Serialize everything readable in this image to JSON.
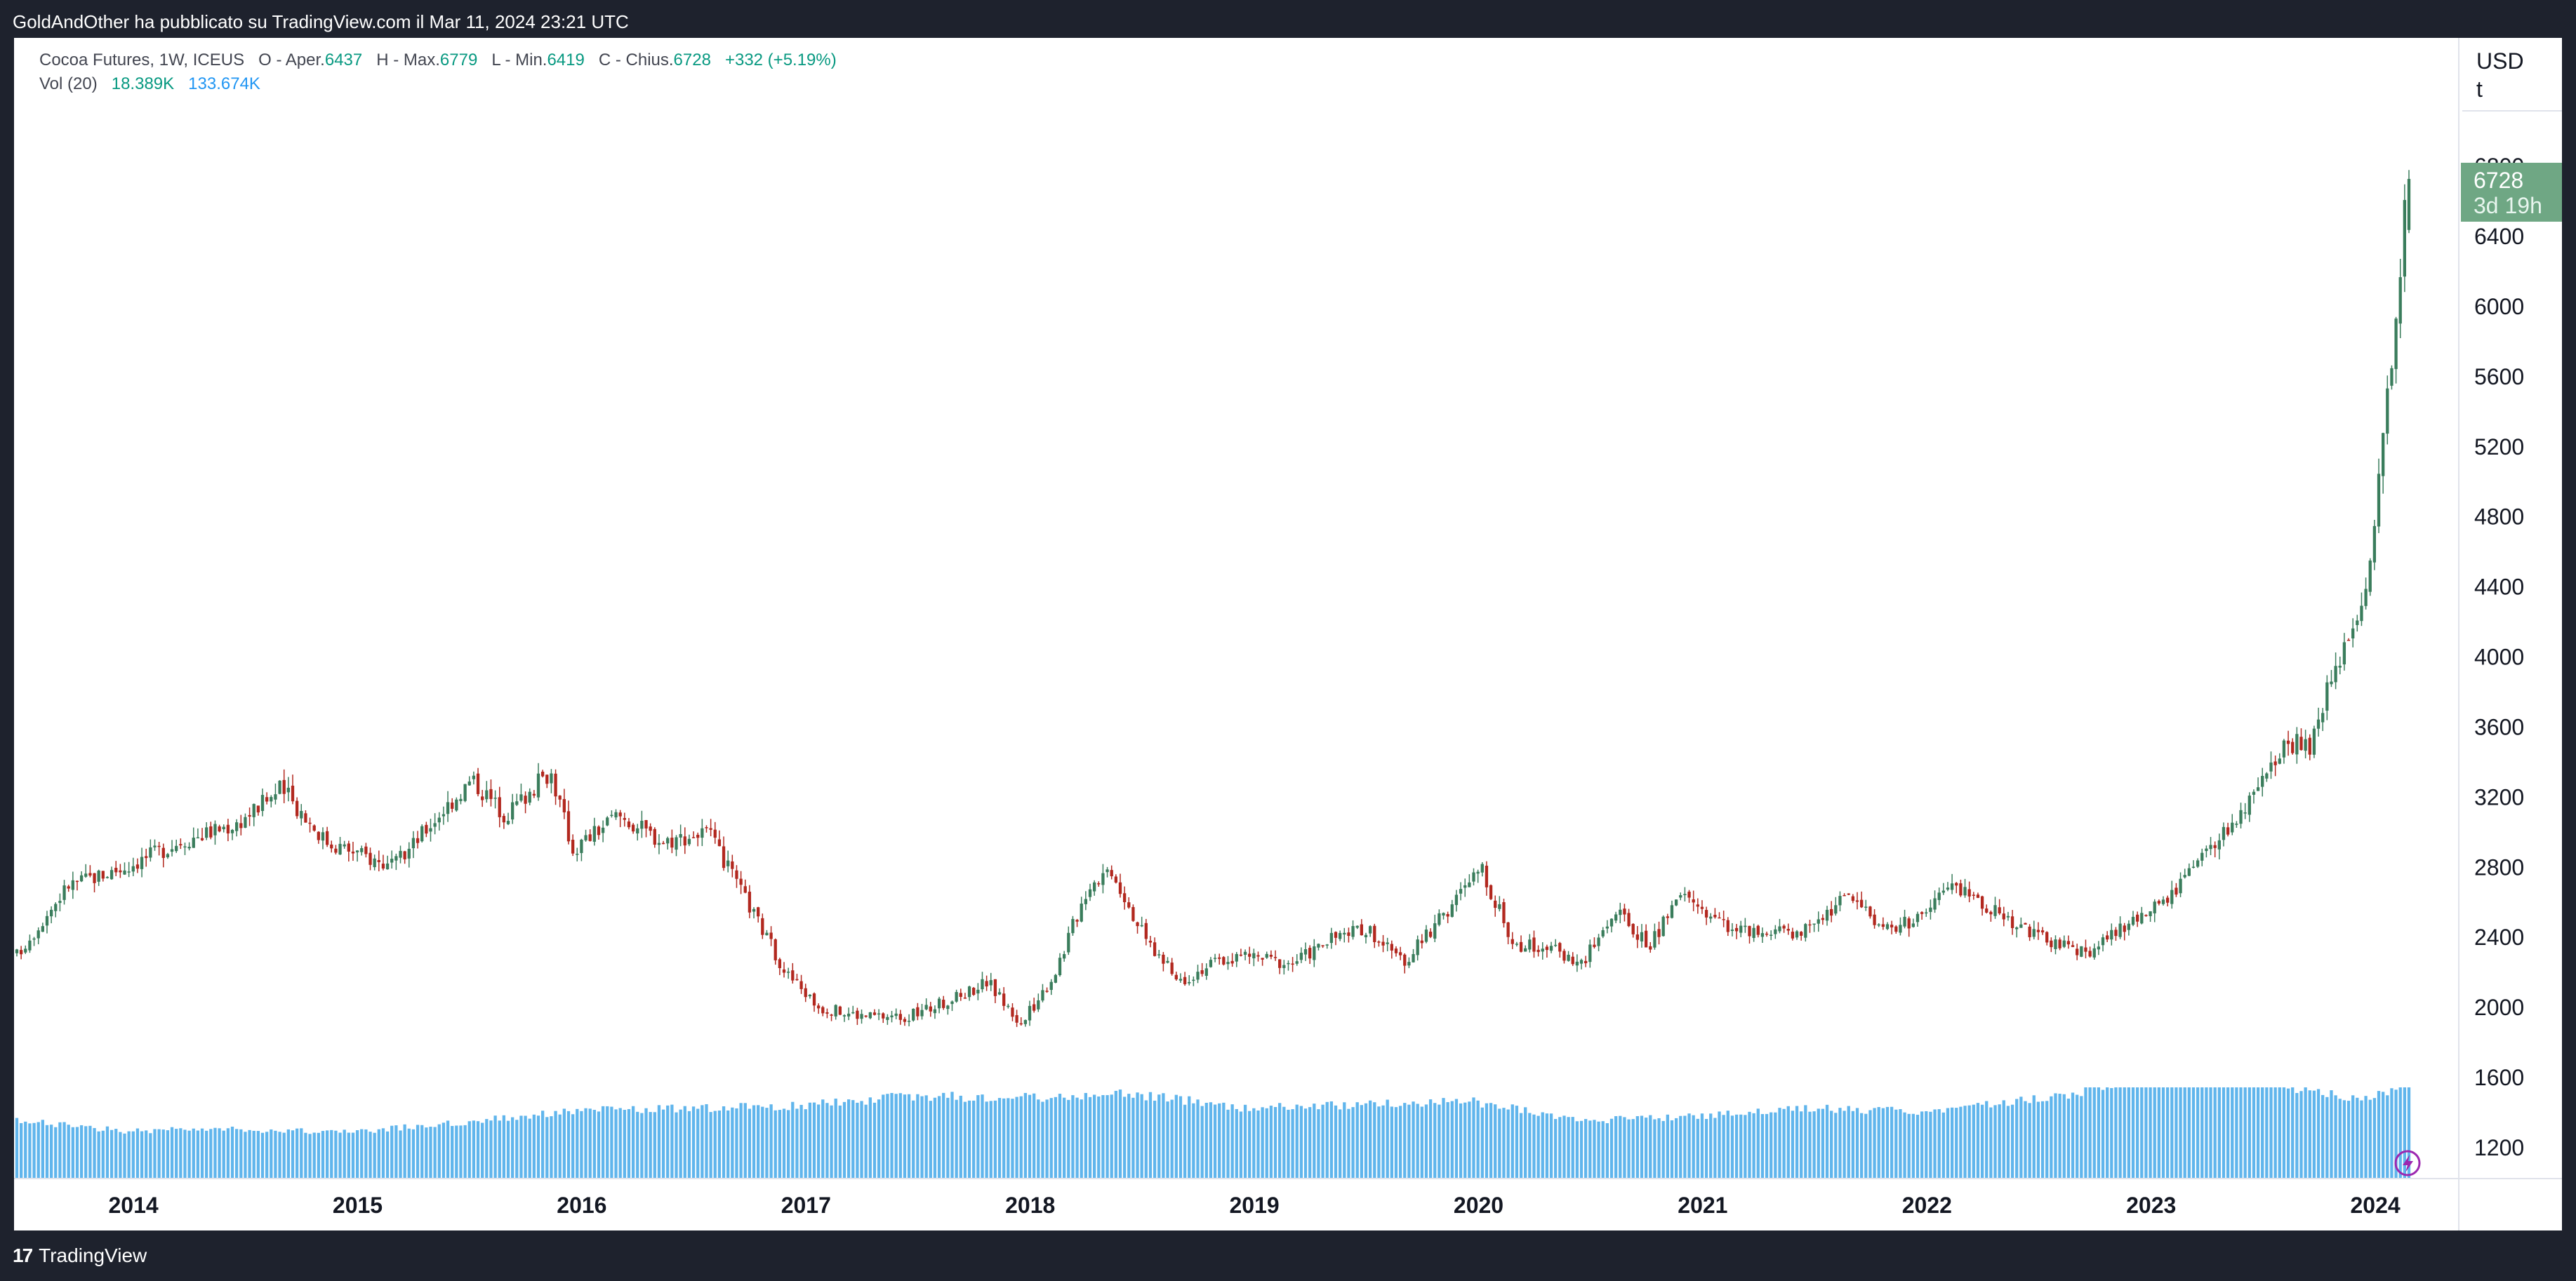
{
  "header": {
    "publish_line": "GoldAndOther ha pubblicato su TradingView.com il Mar 11, 2024 23:21 UTC"
  },
  "legend": {
    "symbol": "Cocoa Futures, 1W, ICEUS",
    "open_label": "O - Aper.",
    "open_value": "6437",
    "high_label": "H - Max.",
    "high_value": "6779",
    "low_label": "L - Min.",
    "low_value": "6419",
    "close_label": "C - Chius.",
    "close_value": "6728",
    "change": "+332 (+5.19%)",
    "vol_label": "Vol (20)",
    "vol_value": "18.389K",
    "vol_ma_value": "133.674K"
  },
  "price_axis": {
    "currency": "USD",
    "unit": "t",
    "last_price": "6728",
    "countdown": "3d 19h"
  },
  "footer": {
    "brand": "TradingView"
  },
  "colors": {
    "up": "#3a7d5c",
    "down": "#b2281f",
    "volume": "#60b5ec",
    "price_tag": "#6fa784",
    "frame": "#1e222d"
  },
  "chart_data": {
    "type": "candlestick",
    "title": "Cocoa Futures, 1W, ICEUS",
    "interval": "1W",
    "x_ticks": [
      "2014",
      "2015",
      "2016",
      "2017",
      "2018",
      "2019",
      "2020",
      "2021",
      "2022",
      "2023",
      "2024"
    ],
    "y_ticks": [
      1200,
      1600,
      2000,
      2400,
      2800,
      3200,
      3600,
      4000,
      4400,
      4800,
      5200,
      5600,
      6000,
      6400,
      6800
    ],
    "ylim": [
      1000,
      7100
    ],
    "last_bar": {
      "open": 6437,
      "high": 6779,
      "low": 6419,
      "close": 6728
    },
    "close_path": [
      {
        "t": 2013.52,
        "close": 2300
      },
      {
        "t": 2013.75,
        "close": 2700
      },
      {
        "t": 2014.0,
        "close": 2800
      },
      {
        "t": 2014.25,
        "close": 2950
      },
      {
        "t": 2014.5,
        "close": 3050
      },
      {
        "t": 2014.7,
        "close": 3250
      },
      {
        "t": 2014.9,
        "close": 2950
      },
      {
        "t": 2015.0,
        "close": 2900
      },
      {
        "t": 2015.2,
        "close": 2800
      },
      {
        "t": 2015.4,
        "close": 3100
      },
      {
        "t": 2015.55,
        "close": 3300
      },
      {
        "t": 2015.7,
        "close": 3100
      },
      {
        "t": 2015.9,
        "close": 3350
      },
      {
        "t": 2016.0,
        "close": 2900
      },
      {
        "t": 2016.2,
        "close": 3100
      },
      {
        "t": 2016.4,
        "close": 2950
      },
      {
        "t": 2016.6,
        "close": 3000
      },
      {
        "t": 2016.8,
        "close": 2550
      },
      {
        "t": 2016.95,
        "close": 2200
      },
      {
        "t": 2017.1,
        "close": 2000
      },
      {
        "t": 2017.3,
        "close": 1950
      },
      {
        "t": 2017.5,
        "close": 1950
      },
      {
        "t": 2017.7,
        "close": 2050
      },
      {
        "t": 2017.85,
        "close": 2150
      },
      {
        "t": 2018.0,
        "close": 1900
      },
      {
        "t": 2018.15,
        "close": 2200
      },
      {
        "t": 2018.3,
        "close": 2700
      },
      {
        "t": 2018.4,
        "close": 2800
      },
      {
        "t": 2018.55,
        "close": 2400
      },
      {
        "t": 2018.7,
        "close": 2150
      },
      {
        "t": 2018.85,
        "close": 2250
      },
      {
        "t": 2019.0,
        "close": 2300
      },
      {
        "t": 2019.2,
        "close": 2250
      },
      {
        "t": 2019.4,
        "close": 2400
      },
      {
        "t": 2019.55,
        "close": 2450
      },
      {
        "t": 2019.7,
        "close": 2250
      },
      {
        "t": 2019.9,
        "close": 2550
      },
      {
        "t": 2020.05,
        "close": 2800
      },
      {
        "t": 2020.2,
        "close": 2350
      },
      {
        "t": 2020.35,
        "close": 2350
      },
      {
        "t": 2020.5,
        "close": 2250
      },
      {
        "t": 2020.65,
        "close": 2550
      },
      {
        "t": 2020.8,
        "close": 2350
      },
      {
        "t": 2020.95,
        "close": 2650
      },
      {
        "t": 2021.1,
        "close": 2500
      },
      {
        "t": 2021.3,
        "close": 2400
      },
      {
        "t": 2021.5,
        "close": 2450
      },
      {
        "t": 2021.7,
        "close": 2650
      },
      {
        "t": 2021.85,
        "close": 2450
      },
      {
        "t": 2022.0,
        "close": 2500
      },
      {
        "t": 2022.15,
        "close": 2700
      },
      {
        "t": 2022.35,
        "close": 2550
      },
      {
        "t": 2022.55,
        "close": 2400
      },
      {
        "t": 2022.75,
        "close": 2300
      },
      {
        "t": 2022.9,
        "close": 2450
      },
      {
        "t": 2023.1,
        "close": 2600
      },
      {
        "t": 2023.3,
        "close": 2900
      },
      {
        "t": 2023.5,
        "close": 3200
      },
      {
        "t": 2023.65,
        "close": 3500
      },
      {
        "t": 2023.75,
        "close": 3500
      },
      {
        "t": 2023.85,
        "close": 3900
      },
      {
        "t": 2023.95,
        "close": 4250
      },
      {
        "t": 2024.02,
        "close": 4500
      },
      {
        "t": 2024.08,
        "close": 5400
      },
      {
        "t": 2024.12,
        "close": 5800
      },
      {
        "t": 2024.16,
        "close": 6400
      },
      {
        "t": 2024.19,
        "close": 6728
      }
    ],
    "volume_path": [
      {
        "t": 2013.52,
        "v": 0.7
      },
      {
        "t": 2014.0,
        "v": 0.58
      },
      {
        "t": 2014.5,
        "v": 0.6
      },
      {
        "t": 2015.0,
        "v": 0.56
      },
      {
        "t": 2015.5,
        "v": 0.68
      },
      {
        "t": 2016.0,
        "v": 0.82
      },
      {
        "t": 2016.5,
        "v": 0.85
      },
      {
        "t": 2017.0,
        "v": 0.88
      },
      {
        "t": 2017.5,
        "v": 1.0
      },
      {
        "t": 2018.0,
        "v": 0.98
      },
      {
        "t": 2018.5,
        "v": 1.03
      },
      {
        "t": 2019.0,
        "v": 0.85
      },
      {
        "t": 2019.5,
        "v": 0.9
      },
      {
        "t": 2020.0,
        "v": 0.94
      },
      {
        "t": 2020.5,
        "v": 0.7
      },
      {
        "t": 2021.0,
        "v": 0.75
      },
      {
        "t": 2021.5,
        "v": 0.85
      },
      {
        "t": 2022.0,
        "v": 0.82
      },
      {
        "t": 2022.5,
        "v": 0.95
      },
      {
        "t": 2023.0,
        "v": 1.18
      },
      {
        "t": 2023.5,
        "v": 1.2
      },
      {
        "t": 2024.0,
        "v": 0.95
      },
      {
        "t": 2024.19,
        "v": 1.2
      }
    ]
  }
}
